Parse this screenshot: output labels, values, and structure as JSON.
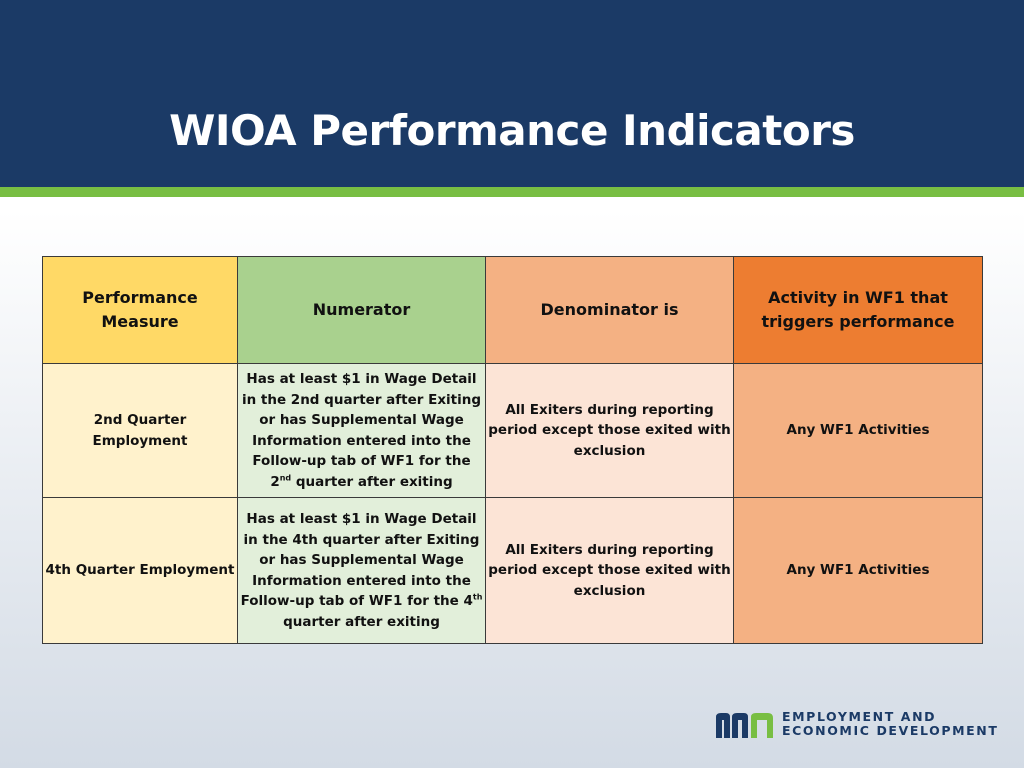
{
  "title": "WIOA Performance Indicators",
  "colors": {
    "header_bg": "#1b3a66",
    "accent_bar": "#78be43",
    "col1_header": "#ffd966",
    "col2_header": "#a9d18e",
    "col3_header": "#f4b183",
    "col4_header": "#ed7d31"
  },
  "table": {
    "headers": [
      "Performance Measure",
      "Numerator",
      "Denominator is",
      "Activity in WF1 that triggers performance"
    ],
    "rows": [
      {
        "measure": "2nd Quarter Employment",
        "numerator_main": "Has at least $1 in Wage Detail in the 2nd quarter after Exiting or has Supplemental Wage Information entered into the Follow-up tab of WF1 for the 2",
        "numerator_sup": "nd",
        "numerator_tail": " quarter after exiting",
        "denominator": "All Exiters during reporting period except those exited with exclusion",
        "activity": "Any WF1 Activities"
      },
      {
        "measure": "4th Quarter Employment",
        "numerator_main": "Has at least $1 in Wage Detail in the 4th quarter after Exiting or has Supplemental Wage Information entered into the Follow-up tab of WF1 for the 4",
        "numerator_sup": "th",
        "numerator_tail": " quarter after exiting",
        "denominator": "All Exiters during reporting period except those exited with exclusion",
        "activity": "Any WF1 Activities"
      }
    ]
  },
  "logo": {
    "line1": "EMPLOYMENT AND",
    "line2": "ECONOMIC DEVELOPMENT",
    "icon": "mn-logo-icon"
  }
}
